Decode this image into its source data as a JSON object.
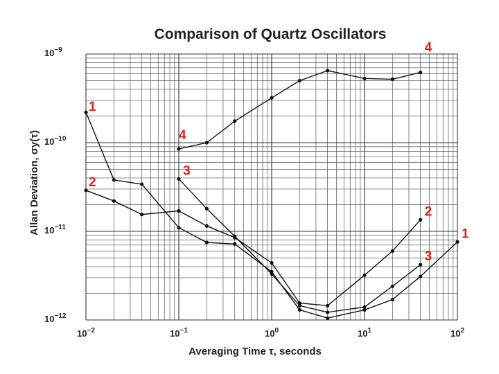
{
  "chart_data": {
    "type": "line",
    "title": "Comparison of Quartz Oscillators",
    "xlabel": "Averaging Time τ, seconds",
    "ylabel": "Allan Deviation, σy(τ)",
    "xscale": "log",
    "yscale": "log",
    "xlim": [
      0.01,
      100
    ],
    "ylim": [
      1e-12,
      1e-09
    ],
    "grid": true,
    "x_ticks": [
      {
        "value": 0.01,
        "base": "10",
        "exp": "−2"
      },
      {
        "value": 0.1,
        "base": "10",
        "exp": "−1"
      },
      {
        "value": 1,
        "base": "10",
        "exp": "0"
      },
      {
        "value": 10,
        "base": "10",
        "exp": "1"
      },
      {
        "value": 100,
        "base": "10",
        "exp": "2"
      }
    ],
    "y_ticks": [
      {
        "value": 1e-09,
        "base": "10",
        "exp": "−9"
      },
      {
        "value": 1e-10,
        "base": "10",
        "exp": "−10"
      },
      {
        "value": 1e-11,
        "base": "10",
        "exp": "−11"
      },
      {
        "value": 1e-12,
        "base": "10",
        "exp": "−12"
      }
    ],
    "label_color": "#e02020",
    "series": [
      {
        "name": "1",
        "x": [
          0.01,
          0.02,
          0.04,
          0.1,
          0.2,
          0.4,
          1,
          2,
          4,
          10,
          20,
          40,
          100
        ],
        "y": [
          2.2e-10,
          3.8e-11,
          3.4e-11,
          1.1e-11,
          7.5e-12,
          7.2e-12,
          3.5e-12,
          1.3e-12,
          1.05e-12,
          1.3e-12,
          1.7e-12,
          3.1e-12,
          7.6e-12
        ]
      },
      {
        "name": "2",
        "x": [
          0.01,
          0.02,
          0.04,
          0.1,
          0.2,
          0.4,
          1,
          2,
          4,
          10,
          20,
          40
        ],
        "y": [
          2.9e-11,
          2.2e-11,
          1.55e-11,
          1.7e-11,
          1.15e-11,
          8.5e-12,
          4.4e-12,
          1.55e-12,
          1.45e-12,
          3.2e-12,
          6e-12,
          1.35e-11
        ]
      },
      {
        "name": "3",
        "x": [
          0.1,
          0.2,
          0.4,
          1,
          2,
          4,
          10,
          20,
          40
        ],
        "y": [
          3.9e-11,
          1.8e-11,
          8.8e-12,
          3.3e-12,
          1.45e-12,
          1.22e-12,
          1.4e-12,
          2.4e-12,
          4.2e-12
        ]
      },
      {
        "name": "4",
        "x": [
          0.1,
          0.2,
          0.4,
          1,
          2,
          4,
          10,
          20,
          40
        ],
        "y": [
          8.5e-11,
          1e-10,
          1.75e-10,
          3.2e-10,
          5e-10,
          6.5e-10,
          5.3e-10,
          5.2e-10,
          6.2e-10
        ]
      }
    ],
    "series_label_positions": [
      {
        "series": "1",
        "placements": [
          "start",
          "end"
        ]
      },
      {
        "series": "2",
        "placements": [
          "start",
          "end"
        ]
      },
      {
        "series": "3",
        "placements": [
          "start",
          "end"
        ]
      },
      {
        "series": "4",
        "placements": [
          "start",
          "end"
        ]
      }
    ]
  }
}
